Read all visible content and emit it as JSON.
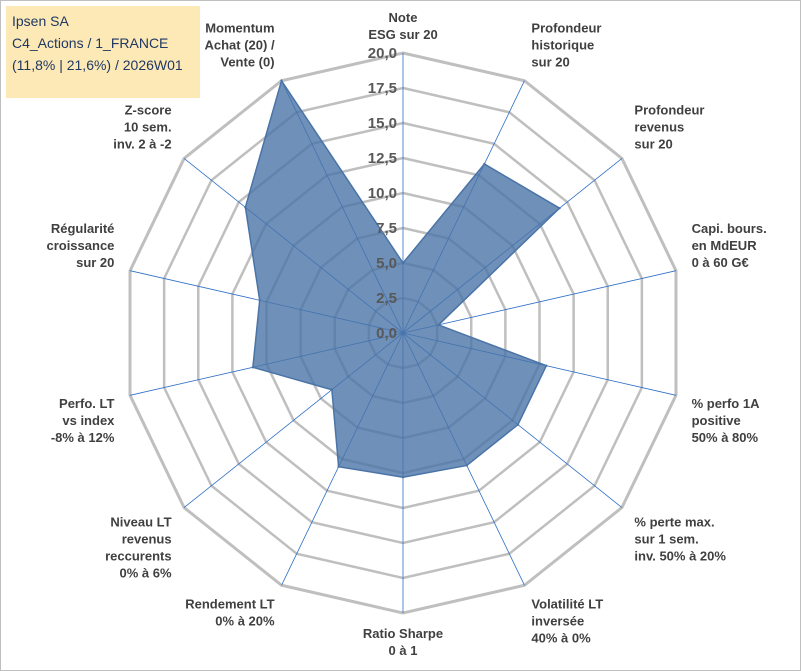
{
  "info": {
    "line1": "Ipsen SA",
    "line2": "C4_Actions / 1_FRANCE",
    "line3": "(11,8% | 21,6%) / 2026W01"
  },
  "chart_data": {
    "type": "radar",
    "title": "",
    "rlim": [
      0,
      20
    ],
    "ticks": [
      "0,0",
      "2,5",
      "5,0",
      "7,5",
      "10,0",
      "12,5",
      "15,0",
      "17,5",
      "20,0"
    ],
    "categories": [
      [
        "Note",
        "ESG sur 20"
      ],
      [
        "Profondeur",
        "historique",
        "sur 20"
      ],
      [
        "Profondeur",
        "revenus",
        "sur 20"
      ],
      [
        "Capi. bours.",
        "en MdEUR",
        "0 à 60 G€"
      ],
      [
        "% perfo 1A",
        "positive",
        "50% à 80%"
      ],
      [
        "% perte max.",
        "sur 1 sem.",
        "inv. 50% à 20%"
      ],
      [
        "Volatilité LT",
        "inversée",
        "40% à 0%"
      ],
      [
        "Ratio Sharpe",
        "0 à 1"
      ],
      [
        "Rendement LT",
        "0% à 20%"
      ],
      [
        "Niveau LT",
        "revenus",
        "reccurents",
        "0% à 6%"
      ],
      [
        "Perfo. LT",
        "vs index",
        "-8% à 12%"
      ],
      [
        "Régularité",
        "croissance",
        "sur 20"
      ],
      [
        "Z-score",
        "10 sem.",
        "inv. 2 à -2"
      ],
      [
        "Momentum",
        "Achat (20) /",
        "Vente (0)"
      ]
    ],
    "series": [
      {
        "name": "Ipsen SA",
        "values": [
          5.0,
          13.4,
          14.3,
          2.6,
          10.5,
          10.5,
          10.5,
          10.3,
          10.6,
          6.5,
          11.0,
          10.5,
          14.4,
          20.0
        ],
        "color": "#4a74a8"
      }
    ]
  }
}
